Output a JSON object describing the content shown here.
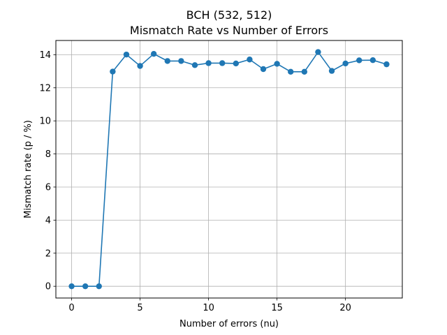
{
  "chart_data": {
    "type": "line",
    "title": "BCH (532, 512)",
    "subtitle": "Mismatch Rate vs Number of Errors",
    "xlabel": "Number of errors (nu)",
    "ylabel": "Mismatch rate (p / %)",
    "xlim": [
      -1.15,
      24.15
    ],
    "ylim": [
      -0.71,
      14.86
    ],
    "x_ticks": [
      0,
      5,
      10,
      15,
      20
    ],
    "y_ticks": [
      0,
      2,
      4,
      6,
      8,
      10,
      12,
      14
    ],
    "grid": true,
    "legend": "none",
    "colors": {
      "series": "#1f77b4",
      "grid": "#b0b0b0",
      "axes": "#000000"
    },
    "series": [
      {
        "marker": "circle",
        "x": [
          0,
          1,
          2,
          3,
          4,
          5,
          6,
          7,
          8,
          9,
          10,
          11,
          12,
          13,
          14,
          15,
          16,
          17,
          18,
          19,
          20,
          21,
          22,
          23
        ],
        "y": [
          0,
          0,
          0,
          12.98,
          14.01,
          13.32,
          14.05,
          13.62,
          13.62,
          13.37,
          13.49,
          13.49,
          13.47,
          13.71,
          13.13,
          13.45,
          12.97,
          12.97,
          14.16,
          13.02,
          13.47,
          13.66,
          13.67,
          13.42
        ]
      }
    ]
  }
}
